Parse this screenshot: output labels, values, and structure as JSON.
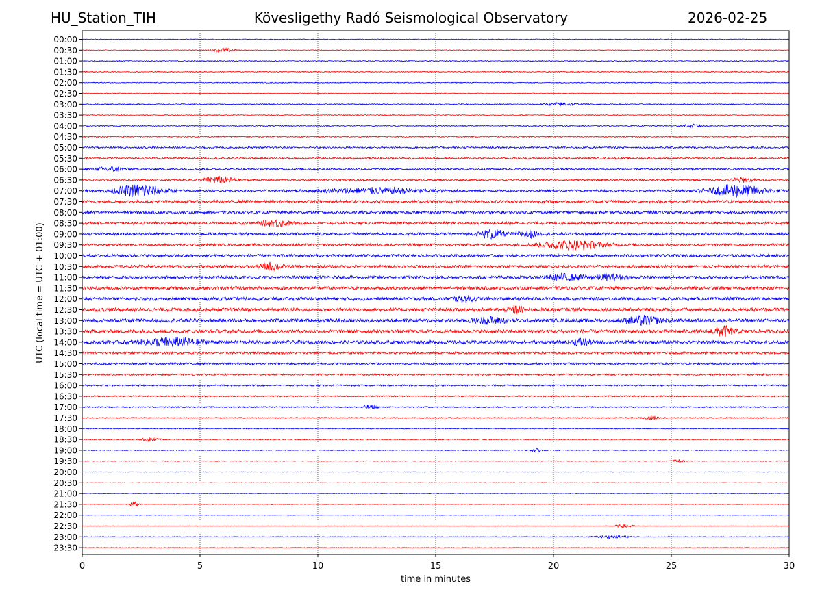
{
  "header": {
    "station": "HU_Station_TIH",
    "title": "Kövesligethy Radó Seismological Observatory",
    "date": "2026-02-25"
  },
  "colors": {
    "odd_trace": "#0000ff",
    "even_trace": "#ff0000",
    "grid": "#000000"
  },
  "chart_data": {
    "type": "line",
    "title": "Kövesligethy Radó Seismological Observatory",
    "xlabel": "time in minutes",
    "ylabel": "UTC (local time = UTC + 01:00)",
    "xlim": [
      0,
      30
    ],
    "x_ticks": [
      0,
      5,
      10,
      15,
      20,
      25,
      30
    ],
    "grid": "vertical dotted lines at 5-minute intervals",
    "series": [
      {
        "name": "00:00",
        "color": "#0000ff",
        "noise": 0.5,
        "events": []
      },
      {
        "name": "00:30",
        "color": "#ff0000",
        "noise": 0.5,
        "events": [
          {
            "t": 6.0,
            "amp": 3,
            "dur": 0.6
          }
        ]
      },
      {
        "name": "01:00",
        "color": "#0000ff",
        "noise": 0.6,
        "events": []
      },
      {
        "name": "01:30",
        "color": "#ff0000",
        "noise": 0.6,
        "events": []
      },
      {
        "name": "02:00",
        "color": "#0000ff",
        "noise": 0.6,
        "events": []
      },
      {
        "name": "02:30",
        "color": "#ff0000",
        "noise": 0.5,
        "events": []
      },
      {
        "name": "03:00",
        "color": "#0000ff",
        "noise": 0.7,
        "events": [
          {
            "t": 20.3,
            "amp": 2.5,
            "dur": 0.8
          }
        ]
      },
      {
        "name": "03:30",
        "color": "#ff0000",
        "noise": 0.6,
        "events": []
      },
      {
        "name": "04:00",
        "color": "#0000ff",
        "noise": 0.7,
        "events": [
          {
            "t": 25.9,
            "amp": 2.5,
            "dur": 0.6
          }
        ]
      },
      {
        "name": "04:30",
        "color": "#ff0000",
        "noise": 0.8,
        "events": []
      },
      {
        "name": "05:00",
        "color": "#0000ff",
        "noise": 1.2,
        "events": []
      },
      {
        "name": "05:30",
        "color": "#ff0000",
        "noise": 1.2,
        "events": []
      },
      {
        "name": "06:00",
        "color": "#0000ff",
        "noise": 1.4,
        "events": [
          {
            "t": 1.2,
            "amp": 3,
            "dur": 0.8
          }
        ]
      },
      {
        "name": "06:30",
        "color": "#ff0000",
        "noise": 1.2,
        "events": [
          {
            "t": 5.8,
            "amp": 5,
            "dur": 0.9
          },
          {
            "t": 28.0,
            "amp": 3.5,
            "dur": 0.6
          }
        ]
      },
      {
        "name": "07:00",
        "color": "#0000ff",
        "noise": 1.6,
        "events": [
          {
            "t": 2.4,
            "amp": 9,
            "dur": 1.4
          },
          {
            "t": 12.5,
            "amp": 4,
            "dur": 3
          },
          {
            "t": 27.8,
            "amp": 9,
            "dur": 1.5
          }
        ]
      },
      {
        "name": "07:30",
        "color": "#ff0000",
        "noise": 2.0,
        "events": []
      },
      {
        "name": "08:00",
        "color": "#0000ff",
        "noise": 2.0,
        "events": []
      },
      {
        "name": "08:30",
        "color": "#ff0000",
        "noise": 2.0,
        "events": [
          {
            "t": 8.2,
            "amp": 4,
            "dur": 0.8
          }
        ]
      },
      {
        "name": "09:00",
        "color": "#0000ff",
        "noise": 2.0,
        "events": [
          {
            "t": 17.4,
            "amp": 6,
            "dur": 0.7
          },
          {
            "t": 18.9,
            "amp": 5,
            "dur": 0.5
          }
        ]
      },
      {
        "name": "09:30",
        "color": "#ff0000",
        "noise": 1.8,
        "events": [
          {
            "t": 20.8,
            "amp": 6,
            "dur": 1.8
          }
        ]
      },
      {
        "name": "10:00",
        "color": "#0000ff",
        "noise": 2.0,
        "events": []
      },
      {
        "name": "10:30",
        "color": "#ff0000",
        "noise": 2.0,
        "events": [
          {
            "t": 8.0,
            "amp": 5,
            "dur": 0.6
          }
        ]
      },
      {
        "name": "11:00",
        "color": "#0000ff",
        "noise": 2.2,
        "events": [
          {
            "t": 20.5,
            "amp": 4,
            "dur": 1
          },
          {
            "t": 22.3,
            "amp": 3.5,
            "dur": 1
          }
        ]
      },
      {
        "name": "11:30",
        "color": "#ff0000",
        "noise": 2.2,
        "events": []
      },
      {
        "name": "12:00",
        "color": "#0000ff",
        "noise": 2.4,
        "events": [
          {
            "t": 16.2,
            "amp": 4,
            "dur": 0.6
          }
        ]
      },
      {
        "name": "12:30",
        "color": "#ff0000",
        "noise": 2.6,
        "events": [
          {
            "t": 18.4,
            "amp": 5,
            "dur": 0.5
          }
        ]
      },
      {
        "name": "13:00",
        "color": "#0000ff",
        "noise": 2.6,
        "events": [
          {
            "t": 23.8,
            "amp": 6,
            "dur": 1
          },
          {
            "t": 17.3,
            "amp": 4,
            "dur": 1
          }
        ]
      },
      {
        "name": "13:30",
        "color": "#ff0000",
        "noise": 2.5,
        "events": [
          {
            "t": 27.2,
            "amp": 7,
            "dur": 0.6
          }
        ]
      },
      {
        "name": "14:00",
        "color": "#0000ff",
        "noise": 2.4,
        "events": [
          {
            "t": 3.8,
            "amp": 6,
            "dur": 1.6
          },
          {
            "t": 21.2,
            "amp": 5,
            "dur": 0.5
          }
        ]
      },
      {
        "name": "14:30",
        "color": "#ff0000",
        "noise": 1.6,
        "events": []
      },
      {
        "name": "15:00",
        "color": "#0000ff",
        "noise": 1.5,
        "events": []
      },
      {
        "name": "15:30",
        "color": "#ff0000",
        "noise": 1.2,
        "events": []
      },
      {
        "name": "16:00",
        "color": "#0000ff",
        "noise": 1.1,
        "events": []
      },
      {
        "name": "16:30",
        "color": "#ff0000",
        "noise": 1.0,
        "events": []
      },
      {
        "name": "17:00",
        "color": "#0000ff",
        "noise": 0.9,
        "events": [
          {
            "t": 12.2,
            "amp": 3,
            "dur": 0.4
          }
        ]
      },
      {
        "name": "17:30",
        "color": "#ff0000",
        "noise": 0.8,
        "events": [
          {
            "t": 24.2,
            "amp": 2.5,
            "dur": 0.4
          }
        ]
      },
      {
        "name": "18:00",
        "color": "#0000ff",
        "noise": 0.6,
        "events": []
      },
      {
        "name": "18:30",
        "color": "#ff0000",
        "noise": 0.6,
        "events": [
          {
            "t": 2.9,
            "amp": 3,
            "dur": 0.5
          }
        ]
      },
      {
        "name": "19:00",
        "color": "#0000ff",
        "noise": 0.6,
        "events": [
          {
            "t": 19.3,
            "amp": 2.5,
            "dur": 0.3
          }
        ]
      },
      {
        "name": "19:30",
        "color": "#ff0000",
        "noise": 0.5,
        "events": [
          {
            "t": 25.3,
            "amp": 2.5,
            "dur": 0.3
          }
        ]
      },
      {
        "name": "20:00",
        "color": "#0000ff",
        "noise": 0.4,
        "events": []
      },
      {
        "name": "20:30",
        "color": "#ff0000",
        "noise": 0.4,
        "events": []
      },
      {
        "name": "21:00",
        "color": "#0000ff",
        "noise": 0.4,
        "events": []
      },
      {
        "name": "21:30",
        "color": "#ff0000",
        "noise": 0.4,
        "events": [
          {
            "t": 2.2,
            "amp": 3.5,
            "dur": 0.3
          }
        ]
      },
      {
        "name": "22:00",
        "color": "#0000ff",
        "noise": 0.4,
        "events": []
      },
      {
        "name": "22:30",
        "color": "#ff0000",
        "noise": 0.4,
        "events": [
          {
            "t": 23.0,
            "amp": 2.5,
            "dur": 0.5
          }
        ]
      },
      {
        "name": "23:00",
        "color": "#0000ff",
        "noise": 0.5,
        "events": [
          {
            "t": 22.5,
            "amp": 2,
            "dur": 1
          }
        ]
      },
      {
        "name": "23:30",
        "color": "#ff0000",
        "noise": 0.4,
        "events": []
      }
    ]
  }
}
